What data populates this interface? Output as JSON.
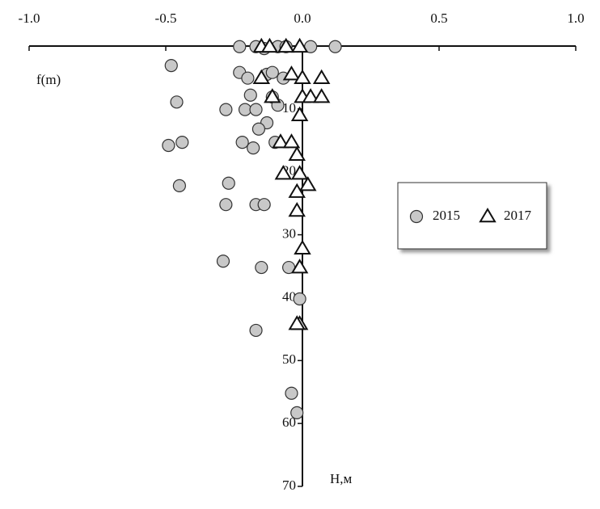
{
  "chart_data": {
    "type": "scatter",
    "x_label": "f(m)",
    "y_label": "H,м",
    "xlim": [
      -1,
      1
    ],
    "ylim": [
      0,
      70
    ],
    "xticks": [
      {
        "value": -1,
        "label": "-1.0"
      },
      -0.5,
      {
        "value": 0,
        "label": "0.0"
      },
      0.5,
      {
        "value": 1,
        "label": "1.0"
      }
    ],
    "yticks": [
      10,
      20,
      30,
      40,
      50,
      60,
      70
    ],
    "y_inverted": true,
    "legend": "right",
    "series": [
      {
        "name": "2015",
        "color": "#c8c8c8",
        "marker": "circle",
        "x": [
          -0.23,
          -0.17,
          -0.14,
          -0.09,
          -0.06,
          0.03,
          0.12,
          -0.48,
          -0.23,
          -0.2,
          -0.13,
          -0.11,
          -0.07,
          -0.46,
          -0.19,
          -0.11,
          -0.09,
          -0.28,
          -0.21,
          -0.17,
          -0.13,
          -0.16,
          -0.49,
          -0.44,
          -0.22,
          -0.18,
          -0.1,
          -0.27,
          -0.45,
          -0.28,
          -0.17,
          -0.14,
          -0.29,
          -0.15,
          -0.05,
          -0.01,
          -0.17,
          -0.04,
          -0.02
        ],
        "values": [
          0.1,
          0.1,
          0.4,
          0.1,
          0.1,
          0.1,
          0.1,
          3.1,
          4.2,
          5.1,
          4.5,
          4.2,
          5.1,
          8.9,
          7.8,
          8.1,
          9.4,
          10.1,
          10.1,
          10.1,
          12.2,
          13.2,
          15.8,
          15.3,
          15.3,
          16.2,
          15.3,
          21.8,
          22.2,
          25.2,
          25.2,
          25.2,
          34.2,
          35.2,
          35.2,
          40.2,
          45.2,
          55.2,
          58.3
        ]
      },
      {
        "name": "2017",
        "color": "#ffffff",
        "marker": "triangle",
        "x": [
          -0.15,
          -0.12,
          -0.06,
          -0.01,
          -0.15,
          -0.04,
          0,
          0.07,
          -0.11,
          0,
          0.03,
          0.07,
          -0.01,
          -0.08,
          -0.04,
          -0.02,
          -0.07,
          -0.01,
          0.02,
          -0.02,
          -0.02,
          0,
          -0.01,
          -0.01,
          -0.02
        ],
        "values": [
          0.1,
          0.1,
          0.1,
          0.1,
          5.1,
          4.5,
          5.1,
          5.1,
          8.1,
          8.1,
          8.1,
          8.1,
          11,
          15.3,
          15.3,
          17.3,
          20.3,
          20.3,
          22.1,
          23.2,
          26.2,
          32.2,
          35.2,
          44.2,
          44.2
        ]
      }
    ]
  }
}
